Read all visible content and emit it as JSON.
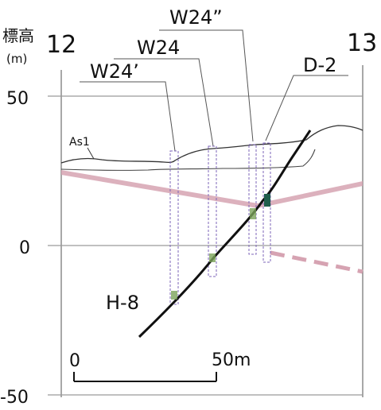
{
  "header": {
    "elevation_label": "標高",
    "unit_label": "(m)",
    "left_section_no": "12",
    "right_section_no": "13"
  },
  "y_axis": {
    "ticks": [
      "50",
      "0",
      "-50"
    ]
  },
  "layers": {
    "as1": "As1"
  },
  "boreholes": {
    "w24_prime": "W24’",
    "w24": "W24",
    "w24_double": "W24”",
    "d2": "D-2"
  },
  "fault": {
    "label": "H-8"
  },
  "scale_bar": {
    "start": "0",
    "end": "50m"
  },
  "colors": {
    "line": "#1a1a1a",
    "fault": "#111111",
    "pink_band": "#d6a3b2",
    "borehole": "#7d64b8",
    "marker_green": "#7aa25a",
    "marker_dark": "#1f5e4b",
    "grid": "#9a9a9a"
  }
}
